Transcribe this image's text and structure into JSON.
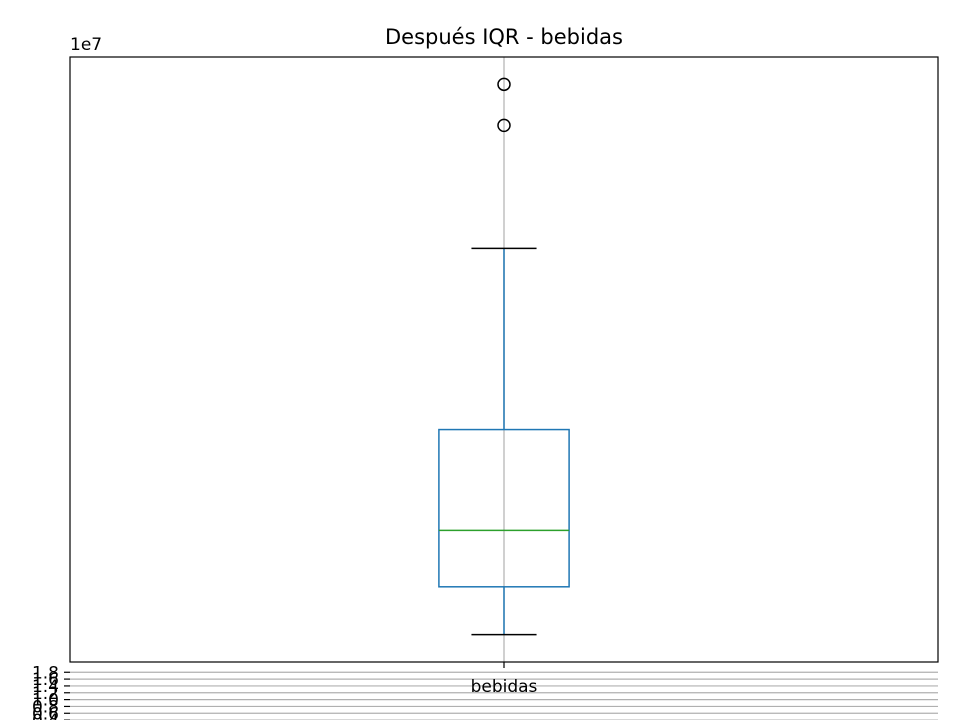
{
  "chart_data": {
    "type": "box",
    "title": "Después IQR - bebidas",
    "xlabel": "",
    "ylabel": "",
    "offset_text": "1e7",
    "categories": [
      "bebidas"
    ],
    "ylim": [
      2.1,
      19.8
    ],
    "yticks": [
      0.4,
      0.6,
      0.8,
      1.0,
      1.2,
      1.4,
      1.6,
      1.8
    ],
    "ytick_labels": [
      "0.4",
      "0.6",
      "0.8",
      "1.0",
      "1.2",
      "1.4",
      "1.6",
      "1.8"
    ],
    "grid": true,
    "boxes": [
      {
        "category": "bebidas",
        "whisker_low": 2.9,
        "q1": 4.3,
        "median": 5.95,
        "q3": 8.9,
        "whisker_high": 14.2,
        "outliers": [
          17.8,
          19.0
        ]
      }
    ],
    "colors": {
      "box": "#1f77b4",
      "median": "#2ca02c",
      "cap": "#000000",
      "outlier": "#000000",
      "grid": "#b0b0b0"
    }
  }
}
